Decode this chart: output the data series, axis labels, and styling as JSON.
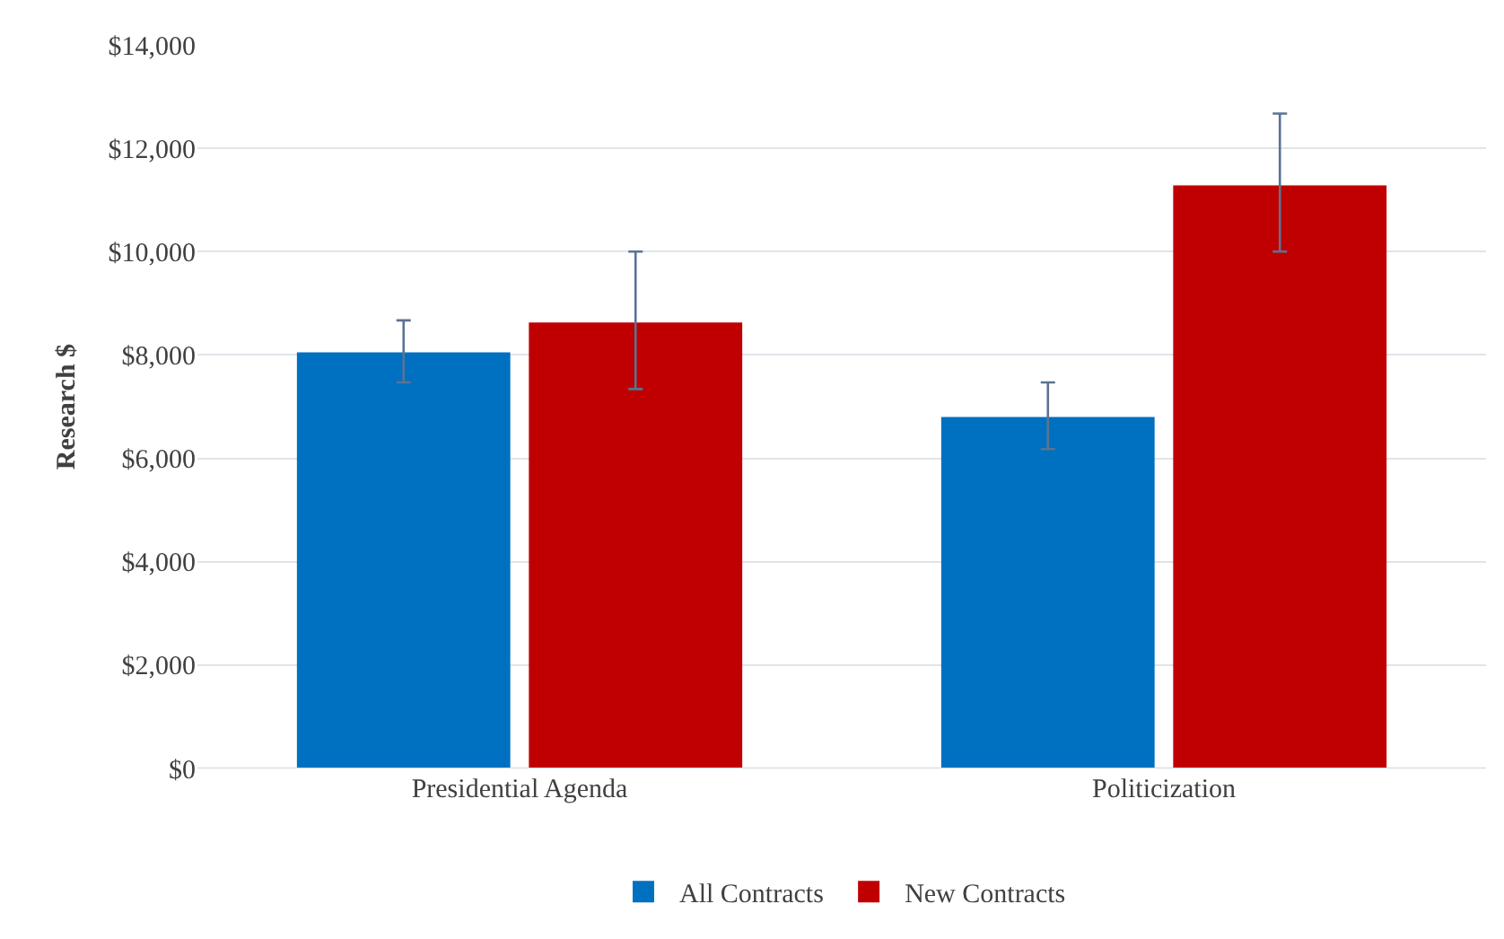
{
  "chart_data": {
    "type": "bar",
    "ylabel": "Research $",
    "categories": [
      "Presidential Agenda",
      "Politicization"
    ],
    "series": [
      {
        "name": "All Contracts",
        "color": "#0070c0",
        "values": [
          8050,
          6800
        ],
        "errors": [
          [
            7470,
            8670
          ],
          [
            6180,
            7470
          ]
        ]
      },
      {
        "name": "New Contracts",
        "color": "#c00000",
        "values": [
          8630,
          11280
        ],
        "errors": [
          [
            7340,
            10000
          ],
          [
            10000,
            12670
          ]
        ]
      }
    ],
    "ylim": [
      0,
      14000
    ],
    "yticks": [
      {
        "value": 0,
        "label": "$0"
      },
      {
        "value": 2000,
        "label": "$2,000"
      },
      {
        "value": 4000,
        "label": "$4,000"
      },
      {
        "value": 6000,
        "label": "$6,000"
      },
      {
        "value": 8000,
        "label": "$8,000"
      },
      {
        "value": 10000,
        "label": "$10,000"
      },
      {
        "value": 12000,
        "label": "$12,000"
      },
      {
        "value": 14000,
        "label": "$14,000"
      }
    ],
    "grid": "y",
    "legend": "bottom"
  }
}
